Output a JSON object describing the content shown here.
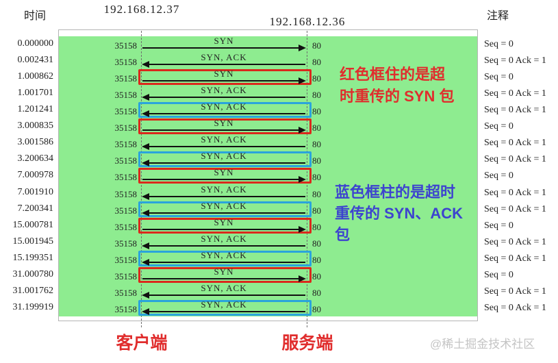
{
  "header": {
    "time_label": "时间",
    "ip_left": "192.168.12.37",
    "ip_right": "192.168.12.36",
    "note_label": "注释"
  },
  "flow": {
    "client_port": "35158",
    "server_port": "80",
    "rows": [
      {
        "time": "0.000000",
        "label": "SYN",
        "direction": "right",
        "box": "none",
        "note": "Seq = 0"
      },
      {
        "time": "0.002431",
        "label": "SYN, ACK",
        "direction": "left",
        "box": "none",
        "note": "Seq = 0 Ack = 1"
      },
      {
        "time": "1.000862",
        "label": "SYN",
        "direction": "right",
        "box": "red",
        "note": "Seq = 0"
      },
      {
        "time": "1.001701",
        "label": "SYN, ACK",
        "direction": "left",
        "box": "none",
        "note": "Seq = 0 Ack = 1"
      },
      {
        "time": "1.201241",
        "label": "SYN, ACK",
        "direction": "left",
        "box": "blue",
        "note": "Seq = 0 Ack = 1"
      },
      {
        "time": "3.000835",
        "label": "SYN",
        "direction": "right",
        "box": "red",
        "note": "Seq = 0"
      },
      {
        "time": "3.001586",
        "label": "SYN, ACK",
        "direction": "left",
        "box": "none",
        "note": "Seq = 0 Ack = 1"
      },
      {
        "time": "3.200634",
        "label": "SYN, ACK",
        "direction": "left",
        "box": "blue",
        "note": "Seq = 0 Ack = 1"
      },
      {
        "time": "7.000978",
        "label": "SYN",
        "direction": "right",
        "box": "red",
        "note": "Seq = 0"
      },
      {
        "time": "7.001910",
        "label": "SYN, ACK",
        "direction": "left",
        "box": "none",
        "note": "Seq = 0 Ack = 1"
      },
      {
        "time": "7.200341",
        "label": "SYN, ACK",
        "direction": "left",
        "box": "blue",
        "note": "Seq = 0 Ack = 1"
      },
      {
        "time": "15.000781",
        "label": "SYN",
        "direction": "right",
        "box": "red",
        "note": "Seq = 0"
      },
      {
        "time": "15.001945",
        "label": "SYN, ACK",
        "direction": "left",
        "box": "none",
        "note": "Seq = 0 Ack = 1"
      },
      {
        "time": "15.199351",
        "label": "SYN, ACK",
        "direction": "left",
        "box": "blue",
        "note": "Seq = 0 Ack = 1"
      },
      {
        "time": "31.000780",
        "label": "SYN",
        "direction": "right",
        "box": "red",
        "note": "Seq = 0"
      },
      {
        "time": "31.001762",
        "label": "SYN, ACK",
        "direction": "left",
        "box": "none",
        "note": "Seq = 0 Ack = 1"
      },
      {
        "time": "31.199919",
        "label": "SYN, ACK",
        "direction": "left",
        "box": "blue",
        "note": "Seq = 0 Ack = 1"
      }
    ]
  },
  "annotations": {
    "red_note_lines": [
      "红色框住的是超",
      "时重传的 SYN 包"
    ],
    "blue_note_lines": [
      "蓝色框柱的是超时",
      "重传的 SYN、ACK",
      "包"
    ]
  },
  "footer": {
    "client_label": "客户端",
    "server_label": "服务端",
    "watermark": "@稀土掘金技术社区"
  },
  "colors": {
    "green_bg": "#8eec90",
    "red_box": "#da291c",
    "blue_box": "#2aa4dc",
    "red_text": "#e02d2d",
    "blue_text": "#3d43cf"
  }
}
